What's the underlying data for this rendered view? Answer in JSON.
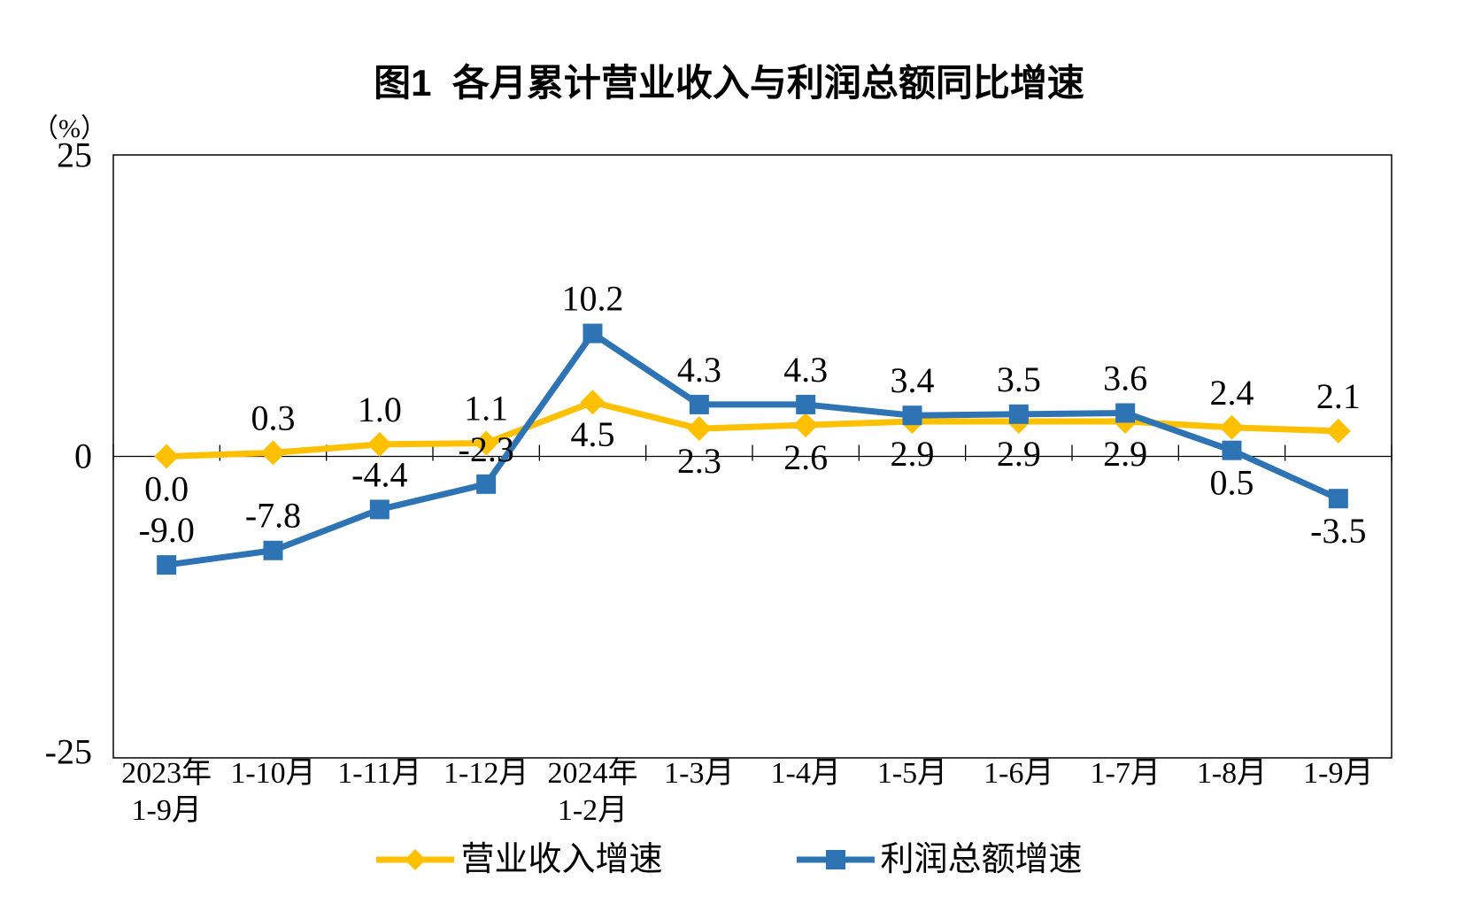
{
  "title": "图1  各月累计营业收入与利润总额同比增速",
  "y_axis": {
    "unit": "（%）",
    "tick_labels": [
      "25",
      "0",
      "-25"
    ]
  },
  "legend": [
    {
      "label": "营业收入增速",
      "color": "#FFC000",
      "marker": "diamond"
    },
    {
      "label": "利润总额增速",
      "color": "#2E74B5",
      "marker": "square"
    }
  ],
  "chart_data": {
    "type": "line",
    "title": "图1  各月累计营业收入与利润总额同比增速",
    "ylabel_unit": "（%）",
    "ylim": [
      -25,
      25
    ],
    "yticks": [
      25,
      0,
      -25
    ],
    "grid": false,
    "legend_position": "bottom",
    "categories_line1": [
      "2023年",
      "1-10月",
      "1-11月",
      "1-12月",
      "2024年",
      "1-3月",
      "1-4月",
      "1-5月",
      "1-6月",
      "1-7月",
      "1-8月",
      "1-9月"
    ],
    "categories_line2": [
      "1-9月",
      "",
      "",
      "",
      "1-2月",
      "",
      "",
      "",
      "",
      "",
      "",
      ""
    ],
    "series": [
      {
        "name": "营业收入增速",
        "color": "#FFC000",
        "marker": "diamond",
        "values": [
          0.0,
          0.3,
          1.0,
          1.1,
          4.5,
          2.3,
          2.6,
          2.9,
          2.9,
          2.9,
          2.4,
          2.1
        ],
        "labels": [
          "0.0",
          "0.3",
          "1.0",
          "1.1",
          "4.5",
          "2.3",
          "2.6",
          "2.9",
          "2.9",
          "2.9",
          "2.4",
          "2.1"
        ],
        "label_positions": [
          "below",
          "above",
          "above",
          "above",
          "below",
          "below",
          "below",
          "below",
          "below",
          "below",
          "above",
          "above"
        ]
      },
      {
        "name": "利润总额增速",
        "color": "#2E74B5",
        "marker": "square",
        "values": [
          -9.0,
          -7.8,
          -4.4,
          -2.3,
          10.2,
          4.3,
          4.3,
          3.4,
          3.5,
          3.6,
          0.5,
          -3.5
        ],
        "labels": [
          "-9.0",
          "-7.8",
          "-4.4",
          "-2.3",
          "10.2",
          "4.3",
          "4.3",
          "3.4",
          "3.5",
          "3.6",
          "0.5",
          "-3.5"
        ],
        "label_positions": [
          "above",
          "above",
          "above",
          "above",
          "above",
          "above",
          "above",
          "above",
          "above",
          "above",
          "below",
          "below"
        ]
      }
    ]
  }
}
